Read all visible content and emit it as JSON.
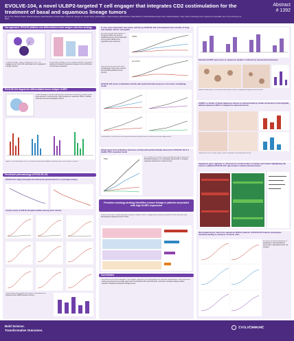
{
  "header": {
    "title": "EVOLVE-104, a novel ULBP2-targeted T cell engager that integrates CD2 costimulation for the treatment of basal and squamous lineage tumors",
    "authors": "Eric M. Tam, Mohosin Sarkar, Khaleda Sergeeva, Aikki Abdurazak, Jennifer Zeiger, Gordon Jin, Zangyun Lu, Heydon Kang, Julio Rodriguez, Amber Fearnley, Maria Harberer, Stella Martomo, Sonali Dhindsaw, Evelyn Tenen, Danielle Blanken, Tracy Lichter, Chuanyang Yuan, Xinguan Ali, Louis Malta, Jay S. Fine and Jeremy S. Myers",
    "abstract_label": "Abstract",
    "abstract_number": "# 1392"
  },
  "sections": {
    "approach": "Our approach: EVOLVE platform and differentiated tumor antigen selection strategy",
    "ulbp2": "EVOLVE-104 targets the differentiated tumor antigen ULBP2",
    "pharmacology": "Preclinical pharmacology of EVOLVE-104",
    "invivo": "In vivo dose dependent anti-tumor activity by EVOLVE-104 in humanized mice models of lung and bladder cancer xenografts",
    "pembro": "EVOLVE-104 shows combination activity with pembrolizumab using an in vivo tumor rechallenge model",
    "single_agent": "Single agent and combination anti-tumor activity with pembrolizumab observed for EVOLVE-104 in a bladder PDX expanded model",
    "precision": "Precision oncology strategy identifies a tumor lineage in patients associated with high ULBP2 expression",
    "elevated": "Elevated ULBP2 expression in squamous bladder confirmed by immunohistochemistry",
    "marker": "ULBP2 is a marker of basal squamous cancers as demonstrated by similar enrichment in histologically defined squamous NSCLC compared to adenocarcinoma",
    "squamous_sig": "Squamous gene signature is observed in a small number of human cell models highlighting the need to establish EVOLVE-104 opportunity in patient-derived tumors",
    "dissociated": "Dissociated tumor cells from squamous NSCLC patients: EVOLVE-104 induces autologous immunity leading to cytolysis of cancer cells",
    "conclusions": "Conclusions"
  },
  "text": {
    "approach_left": "Tri-specific design: ULBP2 binding arm, CD3 T cell engagement arm and CD2 costimulation arm integrated in a single molecule.",
    "approach_right": "Differentiated strategy for tumor antigen selection: expression restricted to basal and squamous lineage tumors with limited normal tissue expression.",
    "ulbp2_bullets": "ULBP2 belongs to NKG2D ligand family; expression is induced by cellular stress and restricted in normal tissues. High prevalence in squamous NSCLC, bladder, head and neck and esophageal cancers.",
    "ulbp2_caption": "Figure 2: RNA expression from TCGA and normal tissue datasets showing ULBP2 enrichment in tumors.",
    "pk_title": "EVOLVE-104 is highly developable and antibody-like pharmacokinetics in cynomolgus monkeys",
    "cyto_title": "Cytolytic activity of EVOLVE-104 against bladder and lung cancer cell lines",
    "cyto_caption": "PBMC-based killing assays show potent, dose-dependent cytolysis across ULBP2 positive cell lines.",
    "invivo_text": "EVOLVE-104 was dosed weekly in humanized NSG mice bearing established tumors. Dose-dependent tumor growth inhibition and regressions were observed.",
    "invivo_text2": "Mice cured by EVOLVE-104 were rechallenged; tumors were rejected demonstrating durable immune memory.",
    "pembro_caption": "Combination of EVOLVE-104 with pembrolizumab enhanced tumor control versus either agent alone.",
    "pdx_text": "PDX model from a ULBP2 high urothelial carcinoma treated with EVOLVE-104 alone or in combination with anti-PD-1; complete responses observed in a subset of mice.",
    "precision_text": "ULBP2 is enriched in basal squamous subtype of bladder cancer. Lineage-defined patient populations were identified using transcriptomic signatures across TCGA.",
    "elevated_caption": "Bladder tissue array: IHC scoring shows higher ULBP2 in squamous subtype versus luminal.",
    "marker_caption": "Squamous NSCLC shows higher ULBP2 expression than adenocarcinoma.",
    "dissociated_caption": "EVOLVE-104 induced activation of autologous T cells and killing of tumor cells in dissociated tumor cell samples.",
    "conclusions_text": "EVOLVE-104 is a ULBP2-targeted T cell engager integrating CD2 costimulation with favorable developability. Potent anti-tumor activity was observed as a single agent and in combination with pembrolizumab. A precision oncology strategy enables selection of basal and squamous lineage tumors."
  },
  "labels": {
    "lung_a549": "A549",
    "bladder_hp": "HT-1376",
    "pdx": "PDX",
    "tumor_vol": "Tumor volume",
    "days": "Days",
    "lung": "Lung",
    "bladder": "Bladder"
  },
  "footer": {
    "tag1": "Bold Science.",
    "tag2": "Transformative Outcomes.",
    "logo": "EVOLVEIMMUNE"
  },
  "colors": {
    "brand": "#4b2a80",
    "accent": "#6e3fa8",
    "panel": "#f2ecf9"
  }
}
